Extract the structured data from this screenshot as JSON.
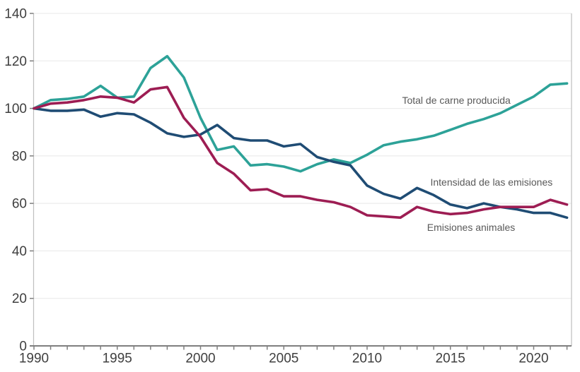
{
  "chart_data": {
    "type": "line",
    "title": "",
    "xlabel": "",
    "ylabel": "",
    "xlim": [
      1990,
      2022
    ],
    "ylim": [
      0,
      140
    ],
    "grid": true,
    "legend_position": "inline-labels",
    "yticks": [
      0,
      20,
      40,
      60,
      80,
      100,
      120,
      140
    ],
    "xtick_labeled": [
      1990,
      1995,
      2000,
      2005,
      2010,
      2015,
      2020
    ],
    "x": [
      1990,
      1991,
      1992,
      1993,
      1994,
      1995,
      1996,
      1997,
      1998,
      1999,
      2000,
      2001,
      2002,
      2003,
      2004,
      2005,
      2006,
      2007,
      2008,
      2009,
      2010,
      2011,
      2012,
      2013,
      2014,
      2015,
      2016,
      2017,
      2018,
      2019,
      2020,
      2021,
      2022
    ],
    "series": [
      {
        "name": "Total de carne producida",
        "color": "#2da298",
        "values": [
          100,
          103.5,
          104,
          105,
          109.5,
          104.5,
          105,
          117,
          122,
          113,
          96,
          82.5,
          84,
          76,
          76.5,
          75.5,
          73.5,
          76.5,
          78.5,
          77,
          80.5,
          84.5,
          86,
          87,
          88.5,
          91,
          93.5,
          95.5,
          98,
          101.5,
          105,
          110,
          110.5
        ]
      },
      {
        "name": "Intensidad de las emisiones",
        "color": "#1f4c74",
        "values": [
          100,
          99,
          99,
          99.5,
          96.5,
          98,
          97.5,
          94,
          89.5,
          88,
          89,
          93,
          87.5,
          86.5,
          86.5,
          84,
          85,
          79.5,
          77.5,
          76,
          67.5,
          64,
          62,
          66.5,
          63.5,
          59.5,
          58,
          60,
          58.5,
          57.5,
          56,
          56,
          54
        ]
      },
      {
        "name": "Emisiones animales",
        "color": "#9d1d53",
        "values": [
          100,
          102,
          102.5,
          103.5,
          105,
          104.5,
          102.5,
          108,
          109,
          96,
          88,
          77,
          72.5,
          65.5,
          66,
          63,
          63,
          61.5,
          60.5,
          58.5,
          55,
          54.5,
          54,
          58.5,
          56.5,
          55.5,
          56,
          57.5,
          58.5,
          58.5,
          58.5,
          61.5,
          59.5
        ]
      }
    ],
    "annotations": [
      {
        "text": "Total de carne producida",
        "year": 2012.1,
        "value": 102.0
      },
      {
        "text": "Intensidad de las emisiones",
        "year": 2013.8,
        "value": 67.5
      },
      {
        "text": "Emisiones animales",
        "year": 2013.6,
        "value": 48.5
      }
    ],
    "colors": {
      "gridline": "#e8e8e8",
      "y_axis_line": "#bfbfbf",
      "right_border": "#bfbfbf",
      "x_axis_line": "#7f7f7f",
      "tick": "#7f7f7f",
      "tick_label": "#3f3f3f",
      "annotation_text": "#595959",
      "background": "#ffffff"
    }
  }
}
